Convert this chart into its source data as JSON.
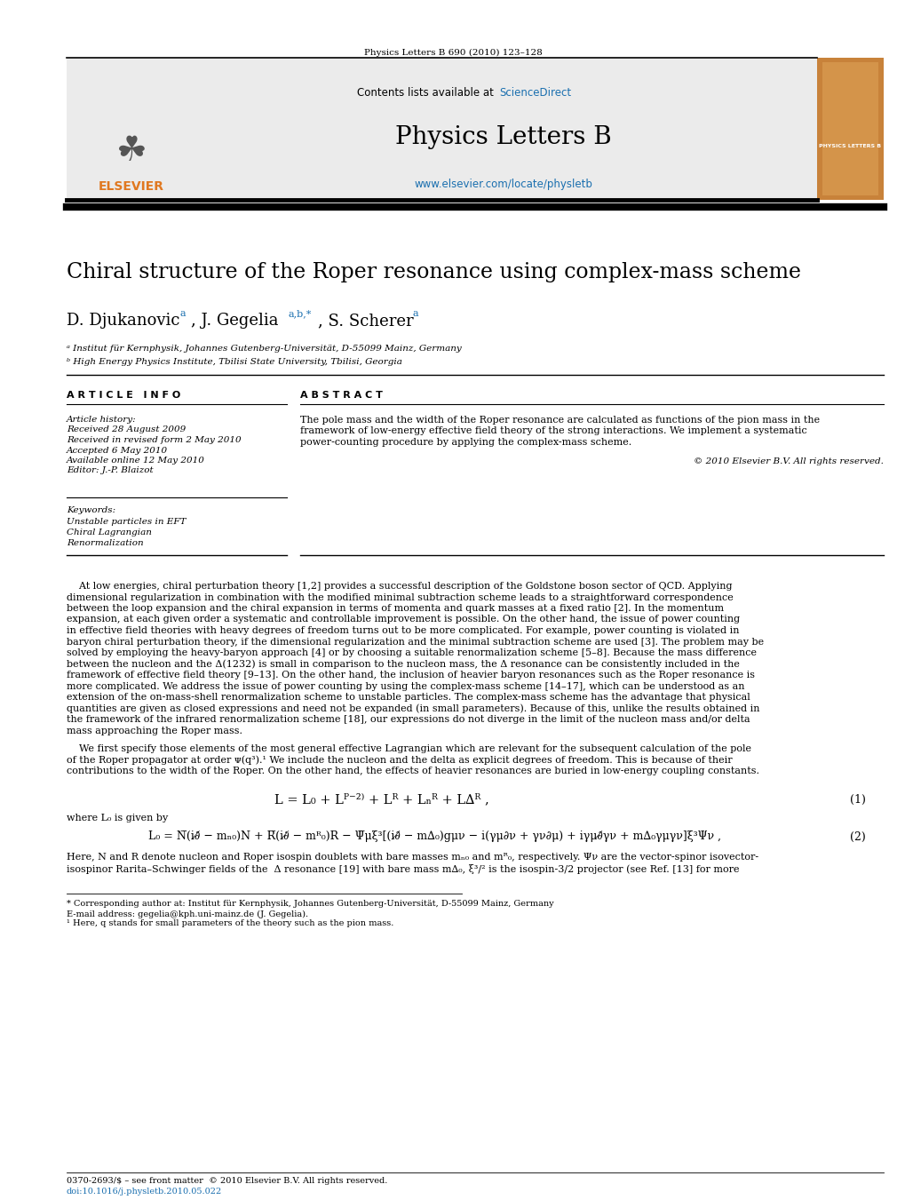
{
  "page_title": "Physics Letters B 690 (2010) 123–128",
  "journal_name": "Physics Letters B",
  "journal_url": "www.elsevier.com/locate/physletb",
  "sciencedirect_text": "Contents lists available at ",
  "paper_title": "Chiral structure of the Roper resonance using complex-mass scheme",
  "affil_a": "ᵃ Institut für Kernphysik, Johannes Gutenberg-Universität, D-55099 Mainz, Germany",
  "affil_b": "ᵇ High Energy Physics Institute, Tbilisi State University, Tbilisi, Georgia",
  "article_info_header": "A R T I C L E   I N F O",
  "abstract_header": "A B S T R A C T",
  "article_history_lines": [
    "Article history:",
    "Received 28 August 2009",
    "Received in revised form 2 May 2010",
    "Accepted 6 May 2010",
    "Available online 12 May 2010",
    "Editor: J.-P. Blaizot"
  ],
  "keywords_header": "Keywords:",
  "keywords_lines": [
    "Unstable particles in EFT",
    "Chiral Lagrangian",
    "Renormalization"
  ],
  "abstract_text": "The pole mass and the width of the Roper resonance are calculated as functions of the pion mass in the\nframework of low-energy effective field theory of the strong interactions. We implement a systematic\npower-counting procedure by applying the complex-mass scheme.",
  "copyright": "© 2010 Elsevier B.V. All rights reserved.",
  "body_para1_lines": [
    "    At low energies, chiral perturbation theory [1,2] provides a successful description of the Goldstone boson sector of QCD. Applying",
    "dimensional regularization in combination with the modified minimal subtraction scheme leads to a straightforward correspondence",
    "between the loop expansion and the chiral expansion in terms of momenta and quark masses at a fixed ratio [2]. In the momentum",
    "expansion, at each given order a systematic and controllable improvement is possible. On the other hand, the issue of power counting",
    "in effective field theories with heavy degrees of freedom turns out to be more complicated. For example, power counting is violated in",
    "baryon chiral perturbation theory, if the dimensional regularization and the minimal subtraction scheme are used [3]. The problem may be",
    "solved by employing the heavy-baryon approach [4] or by choosing a suitable renormalization scheme [5–8]. Because the mass difference",
    "between the nucleon and the Δ(1232) is small in comparison to the nucleon mass, the Δ resonance can be consistently included in the",
    "framework of effective field theory [9–13]. On the other hand, the inclusion of heavier baryon resonances such as the Roper resonance is",
    "more complicated. We address the issue of power counting by using the complex-mass scheme [14–17], which can be understood as an",
    "extension of the on-mass-shell renormalization scheme to unstable particles. The complex-mass scheme has the advantage that physical",
    "quantities are given as closed expressions and need not be expanded (in small parameters). Because of this, unlike the results obtained in",
    "the framework of the infrared renormalization scheme [18], our expressions do not diverge in the limit of the nucleon mass and/or delta",
    "mass approaching the Roper mass."
  ],
  "body_para2_lines": [
    "    We first specify those elements of the most general effective Lagrangian which are relevant for the subsequent calculation of the pole",
    "of the Roper propagator at order ᴪ(q³).¹ We include the nucleon and the delta as explicit degrees of freedom. This is because of their",
    "contributions to the width of the Roper. On the other hand, the effects of heavier resonances are buried in low-energy coupling constants."
  ],
  "eq1": "L = L₀ + Lᴾ⁻²⁾ + Lᴿ + Lₙᴿ + L∆ᴿ ,",
  "eq1_num": "(1)",
  "eq2_label": "where L₀ is given by",
  "eq2": "L₀ = N̅(i∂̸ − mₙ₀)N + R̅(i∂̸ − mᴿ₀)R − Ψ̅μξ³[(i∂̸ − m∆₀)gμν − i(γμ∂ν + γν∂μ) + iγμ∂̸γν + m∆₀γμγν]ξ³Ψν ,",
  "eq2_num": "(2)",
  "body_para3_lines": [
    "Here, N and R denote nucleon and Roper isospin doublets with bare masses mₙ₀ and mᴿ₀, respectively. Ψν are the vector-spinor isovector-",
    "isospinor Rarita–Schwinger fields of the  Δ resonance [19] with bare mass m∆₀, ξ³/² is the isospin-3/2 projector (see Ref. [13] for more"
  ],
  "footer_note1": "* Corresponding author at: Institut für Kernphysik, Johannes Gutenberg-Universität, D-55099 Mainz, Germany",
  "footer_email": "E-mail address: gegelia@kph.uni-mainz.de (J. Gegelia).",
  "footer_note2": "¹ Here, q stands for small parameters of the theory such as the pion mass.",
  "footer_issn": "0370-2693/$ – see front matter  © 2010 Elsevier B.V. All rights reserved.",
  "footer_doi": "doi:10.1016/j.physletb.2010.05.022",
  "bg_color": "#ffffff",
  "header_bg": "#ebebeb",
  "blue_color": "#1a6faf",
  "orange_color": "#e07820",
  "text_color": "#000000"
}
